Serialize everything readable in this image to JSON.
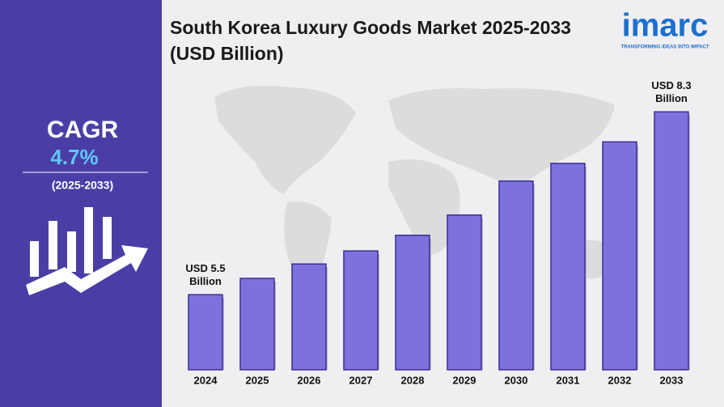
{
  "chart_data": {
    "type": "bar",
    "title": "South Korea Luxury Goods Market 2025-2033 (USD Billion)",
    "categories": [
      "2024",
      "2025",
      "2026",
      "2027",
      "2028",
      "2029",
      "2030",
      "2031",
      "2032",
      "2033"
    ],
    "values": [
      5.5,
      5.75,
      5.97,
      6.17,
      6.41,
      6.72,
      7.24,
      7.51,
      7.84,
      8.3
    ],
    "value_labels": [
      "USD 5.5 Billion",
      null,
      null,
      null,
      null,
      null,
      null,
      null,
      null,
      "USD 8.3 Billion"
    ],
    "color": "#7d71dc",
    "ylim": [
      4.35,
      8.6
    ]
  },
  "sidebar": {
    "label": "CAGR",
    "value": "4.7%",
    "period": "(2025-2033)"
  },
  "logo": {
    "name": "imarc",
    "tagline": "TRANSFORMING IDEAS INTO IMPACT"
  }
}
